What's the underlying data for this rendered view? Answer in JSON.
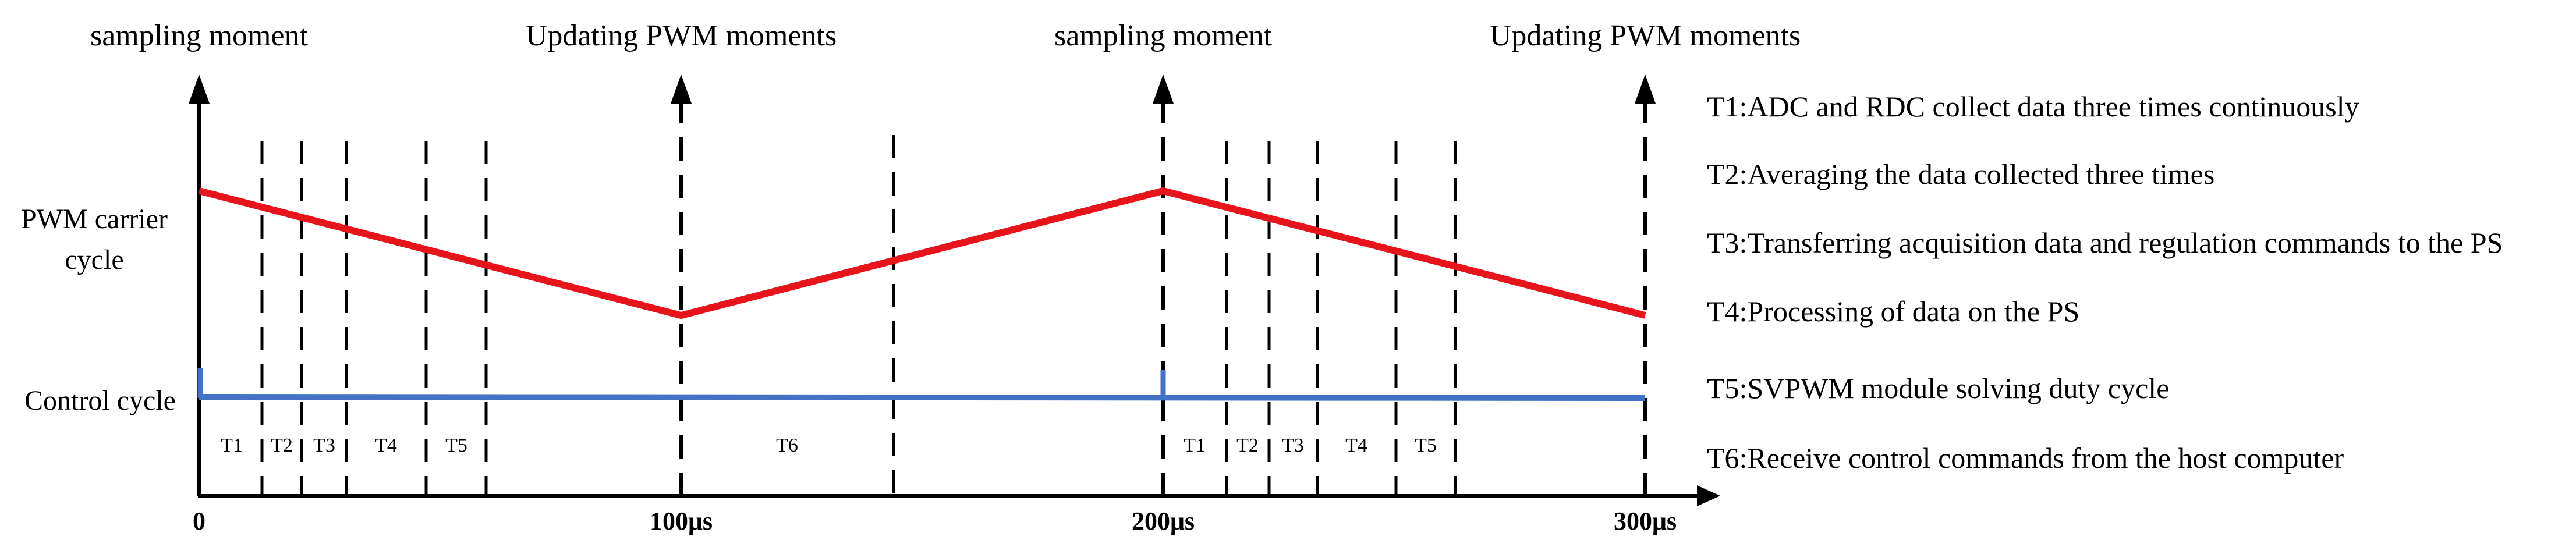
{
  "top_labels": {
    "t0": "sampling moment",
    "t100": "Updating PWM moments",
    "t200": "sampling moment",
    "t300": "Updating PWM moments"
  },
  "side_labels": {
    "pwm_line1": "PWM carrier",
    "pwm_line2": "cycle",
    "control": "Control cycle"
  },
  "axis_ticks": {
    "t0": "0",
    "t100": "100μs",
    "t200": "200μs",
    "t300": "300μs"
  },
  "segments": {
    "a": [
      "T1",
      "T2",
      "T3",
      "T4",
      "T5"
    ],
    "t6": "T6",
    "b": [
      "T1",
      "T2",
      "T3",
      "T4",
      "T5"
    ]
  },
  "legend": [
    "T1:ADC and RDC collect data three times continuously",
    "T2:Averaging the data collected three times",
    "T3:Transferring acquisition data and regulation commands to the PS",
    "T4:Processing of data on the PS",
    "T5:SVPWM module solving duty cycle",
    "T6:Receive control commands from the host computer"
  ],
  "colors": {
    "pwm": "#e8141c",
    "control": "#4472c4",
    "line": "#000000"
  }
}
